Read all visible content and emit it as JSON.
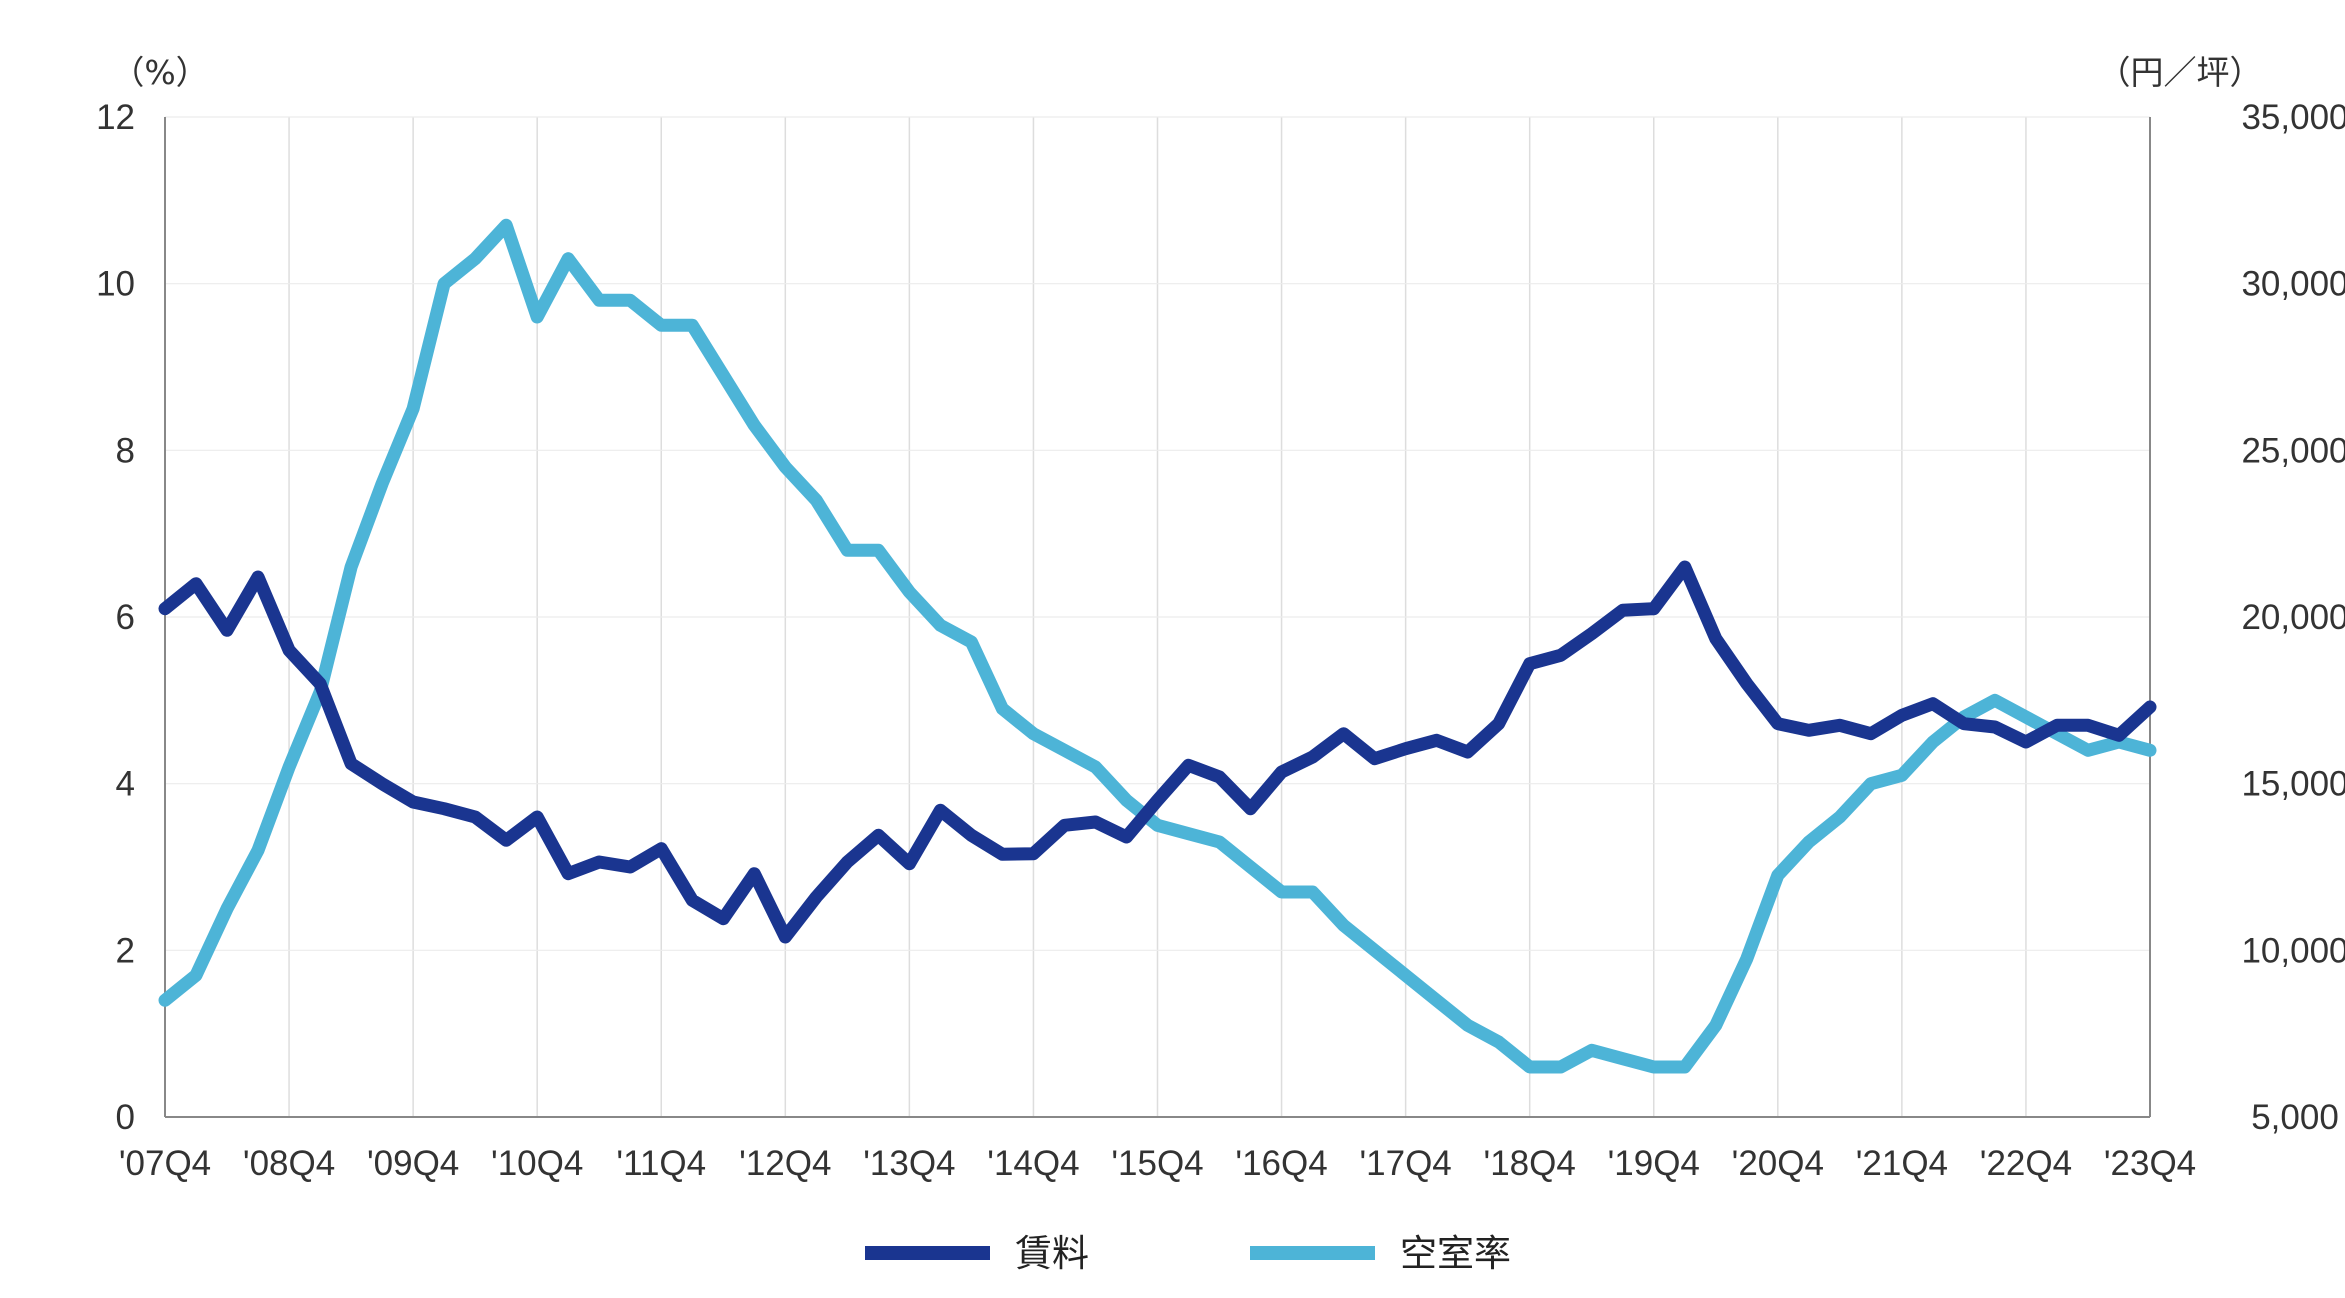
{
  "chart_data": {
    "type": "line",
    "left_axis_unit": "（%）",
    "right_axis_unit": "（円／坪）",
    "left_ylim": [
      0,
      12
    ],
    "left_ticks": [
      "0",
      "2",
      "4",
      "6",
      "8",
      "10",
      "12"
    ],
    "right_ylim": [
      5000,
      35000
    ],
    "right_ticks": [
      "5,000",
      "10,000",
      "15,000",
      "20,000",
      "25,000",
      "30,000",
      "35,000"
    ],
    "x_tick_labels": [
      "'07Q4",
      "'08Q4",
      "'09Q4",
      "'10Q4",
      "'11Q4",
      "'12Q4",
      "'13Q4",
      "'14Q4",
      "'15Q4",
      "'16Q4",
      "'17Q4",
      "'18Q4",
      "'19Q4",
      "'20Q4",
      "'21Q4",
      "'22Q4",
      "'23Q4"
    ],
    "grid": "vertical gridlines at each Q4",
    "legend_position": "bottom-center",
    "series": [
      {
        "name": "賃料",
        "axis": "right",
        "color": "#1a3590",
        "values": [
          20250,
          21000,
          19600,
          21200,
          19000,
          18000,
          15600,
          15000,
          14450,
          14250,
          14000,
          13300,
          14000,
          12300,
          12650,
          12500,
          13050,
          11500,
          10950,
          12300,
          10400,
          11600,
          12650,
          13450,
          12600,
          14200,
          13450,
          12880,
          12900,
          13750,
          13850,
          13400,
          14500,
          15550,
          15200,
          14250,
          15350,
          15800,
          16500,
          15750,
          16050,
          16300,
          15950,
          16800,
          18600,
          18850,
          19500,
          20200,
          20250,
          21500,
          19350,
          18000,
          16800,
          16600,
          16750,
          16500,
          17050,
          17400,
          16800,
          16700,
          16250,
          16750,
          16750,
          16450,
          17300
        ]
      },
      {
        "name": "空室率",
        "axis": "left",
        "color": "#4db4d7",
        "values": [
          1.4,
          1.7,
          2.5,
          3.2,
          4.2,
          5.1,
          6.6,
          7.6,
          8.5,
          10.0,
          10.3,
          10.7,
          9.6,
          10.3,
          9.8,
          9.8,
          9.5,
          9.5,
          8.9,
          8.3,
          7.8,
          7.4,
          6.8,
          6.8,
          6.3,
          5.9,
          5.7,
          4.9,
          4.6,
          4.4,
          4.2,
          3.8,
          3.5,
          3.4,
          3.3,
          3.0,
          2.7,
          2.7,
          2.3,
          2.0,
          1.7,
          1.4,
          1.1,
          0.9,
          0.6,
          0.6,
          0.8,
          0.7,
          0.6,
          0.6,
          1.1,
          1.9,
          2.9,
          3.3,
          3.6,
          4.0,
          4.1,
          4.5,
          4.8,
          5.0,
          4.8,
          4.6,
          4.4,
          4.5,
          4.4
        ]
      }
    ]
  }
}
